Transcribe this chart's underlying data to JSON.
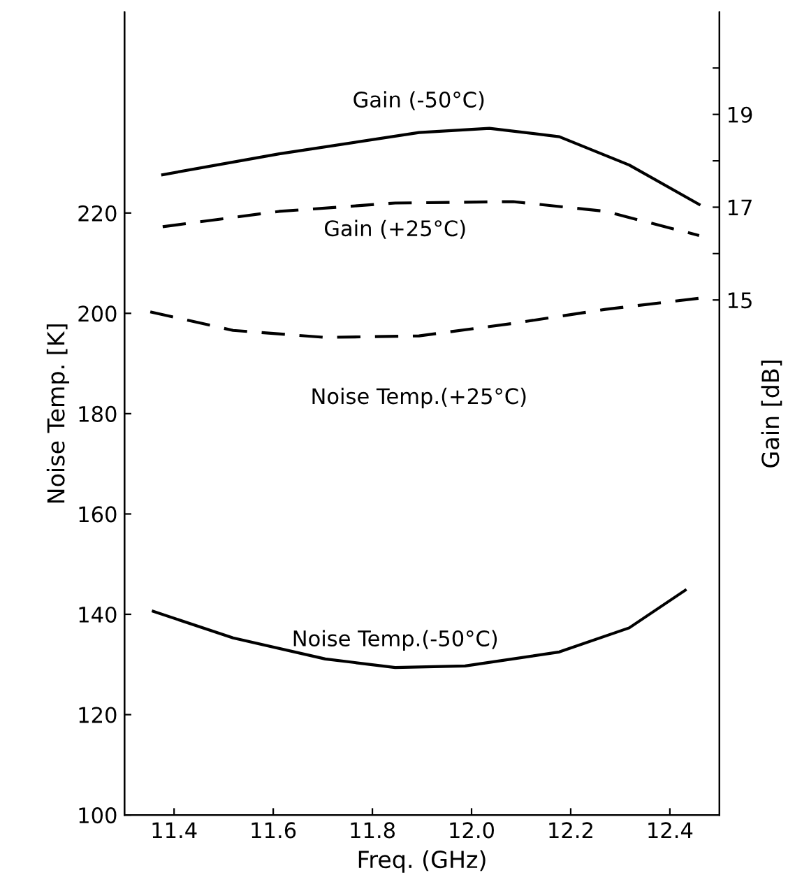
{
  "chart_data": {
    "type": "line",
    "xlabel": "Freq. (GHz)",
    "ylabel": "Noise Temp. [K]",
    "y2label": "Gain [dB]",
    "xlim": [
      11.3,
      12.5
    ],
    "xticks": [
      11.4,
      11.6,
      11.8,
      {
        "value": 12.0,
        "label": "12.0"
      },
      12.2,
      12.4
    ],
    "ylim": [
      100,
      260
    ],
    "yticks": [
      100,
      120,
      140,
      160,
      180,
      200,
      220
    ],
    "y2lim": [
      3.9,
      21.2
    ],
    "y2ticks": [
      15,
      {
        "value": 16,
        "label": null
      },
      17,
      {
        "value": 18,
        "label": null
      },
      19,
      {
        "value": 20,
        "label": null
      }
    ],
    "grid": false,
    "legend": false,
    "marker": "none",
    "series": [
      {
        "name": "Gain (-50°C)",
        "axis": "y2",
        "color": "#000000",
        "line_style": "solid",
        "x": [
          11.377,
          11.612,
          11.894,
          12.036,
          12.177,
          12.318,
          12.459
        ],
        "values": [
          17.7,
          18.15,
          18.61,
          18.7,
          18.52,
          17.91,
          17.06
        ]
      },
      {
        "name": "Gain (+25°C)",
        "axis": "y2",
        "color": "#000000",
        "line_style": "dashed",
        "x": [
          11.377,
          11.612,
          11.846,
          12.084,
          12.27,
          12.459
        ],
        "values": [
          16.58,
          16.91,
          17.09,
          17.12,
          16.91,
          16.39
        ]
      },
      {
        "name": "Noise Temp.(+25°C)",
        "axis": "y",
        "color": "#000000",
        "line_style": "dashed",
        "x": [
          11.352,
          11.519,
          11.705,
          11.894,
          12.084,
          12.27,
          12.459
        ],
        "values": [
          200.3,
          196.6,
          195.2,
          195.5,
          198.0,
          200.8,
          203.0
        ]
      },
      {
        "name": "Noise Temp.(-50°C)",
        "axis": "y",
        "color": "#000000",
        "line_style": "solid",
        "x": [
          11.358,
          11.519,
          11.705,
          11.846,
          11.987,
          12.177,
          12.318,
          12.431
        ],
        "values": [
          140.6,
          135.3,
          131.1,
          129.4,
          129.7,
          132.5,
          137.3,
          144.8
        ]
      }
    ]
  }
}
